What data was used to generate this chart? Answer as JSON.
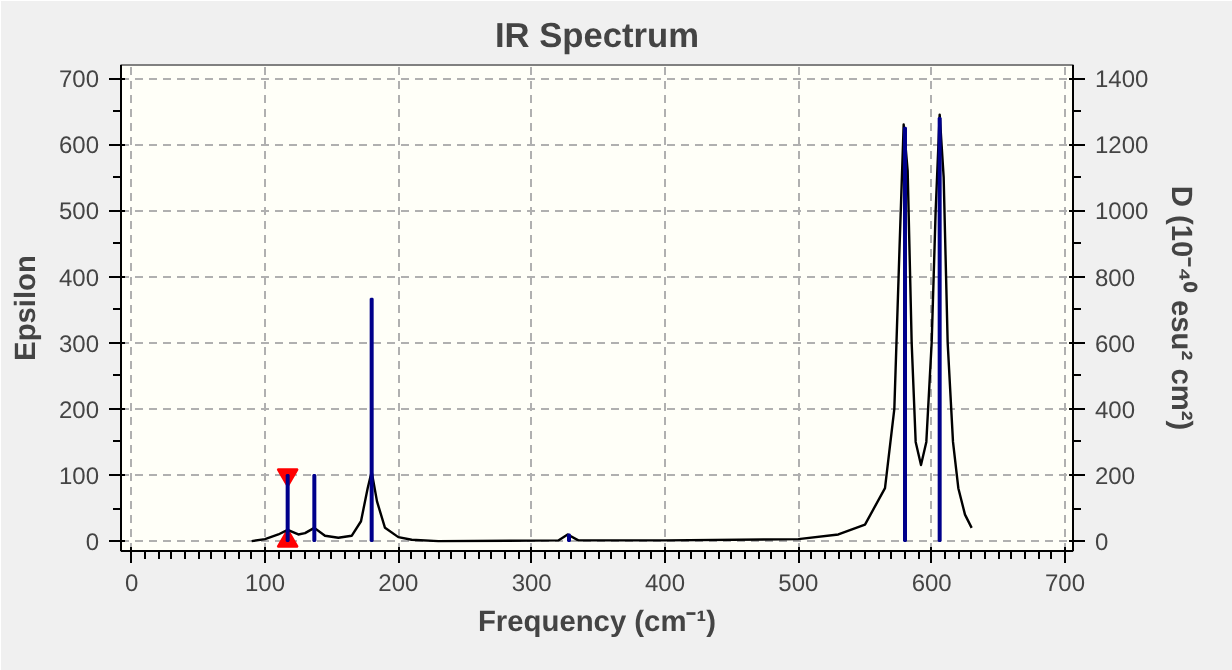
{
  "chart_data": {
    "type": "line",
    "title": "IR Spectrum",
    "xlabel": "Frequency (cm⁻¹)",
    "ylabel": "Epsilon",
    "y2label": "D (10⁻⁴⁰ esu² cm²)",
    "xlim": [
      -8,
      706
    ],
    "xticks": [
      0,
      100,
      200,
      300,
      400,
      500,
      600,
      700
    ],
    "ylim": [
      -15,
      720
    ],
    "yticks": [
      0,
      100,
      200,
      300,
      400,
      500,
      600,
      700
    ],
    "y2lim": [
      -30,
      1440
    ],
    "y2ticks": [
      0,
      200,
      400,
      600,
      800,
      1000,
      1200,
      1400
    ],
    "grid": true,
    "series": [
      {
        "type": "scatter",
        "color": "#ff0000",
        "marker": "triangle",
        "x": [
          117,
          117
        ],
        "values": [
          100,
          0
        ]
      },
      {
        "color": "#000000",
        "marker": "none",
        "line_style": "solid",
        "x": [
          90,
          100,
          110,
          117,
          125,
          130,
          137,
          145,
          155,
          165,
          172,
          177,
          180,
          184,
          190,
          200,
          210,
          230,
          320,
          327,
          335,
          400,
          500,
          530,
          550,
          565,
          572,
          576,
          579,
          582,
          585,
          588,
          592,
          596,
          600,
          603,
          606,
          609,
          612,
          616,
          620,
          625,
          630
        ],
        "values": [
          0,
          3,
          10,
          17,
          10,
          12,
          20,
          8,
          5,
          8,
          30,
          80,
          105,
          60,
          20,
          6,
          2,
          0,
          1,
          10,
          1,
          1,
          3,
          10,
          25,
          80,
          200,
          450,
          630,
          560,
          300,
          150,
          115,
          150,
          300,
          500,
          645,
          550,
          300,
          150,
          80,
          40,
          20
        ]
      },
      {
        "type": "bar",
        "axis": "y2",
        "color": "#00008b",
        "x": [
          117,
          137,
          180,
          328,
          580,
          606
        ],
        "values": [
          200,
          200,
          733,
          20,
          1250,
          1280
        ]
      }
    ]
  }
}
